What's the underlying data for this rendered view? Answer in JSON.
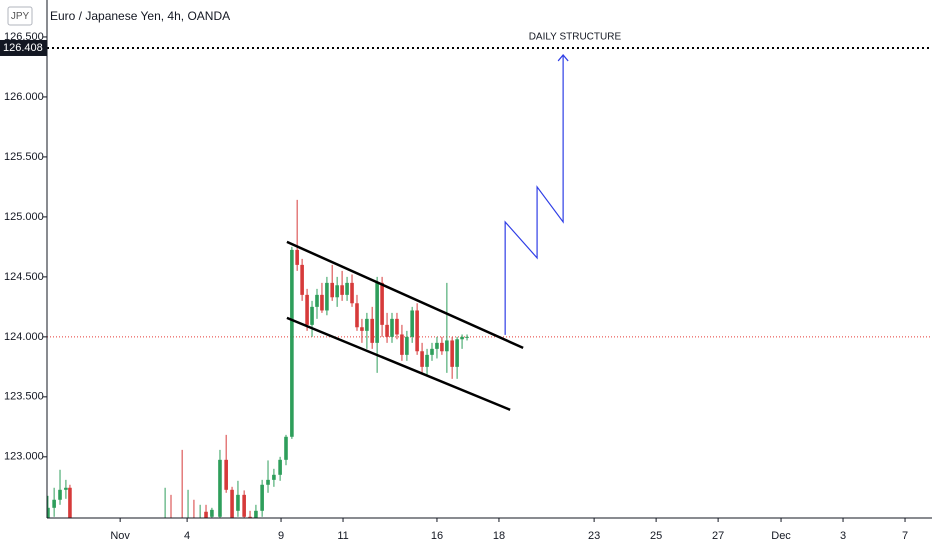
{
  "chart_data": {
    "type": "candlestick",
    "symbol": "JPY",
    "title": "Euro / Japanese Yen, 4h, OANDA",
    "up_color": "#2e9e5b",
    "down_color": "#d63a3a",
    "x": [
      -7.52,
      -7.32,
      -7.13,
      -6.94,
      -6.81,
      -3.74,
      -3.55,
      -3.19,
      -3.0,
      -2.81,
      -2.61,
      -2.42,
      -2.23,
      -1.97,
      -1.77,
      -1.58,
      -1.39,
      -1.19,
      -1.0,
      -0.81,
      -0.61,
      -0.42,
      -0.23,
      -0.03,
      0.16,
      0.35,
      0.52,
      0.68,
      0.84,
      1.0,
      1.16,
      1.32,
      1.48,
      1.65,
      1.81,
      1.97,
      2.13,
      2.29,
      2.45,
      2.61,
      2.77,
      2.94,
      3.1,
      3.26,
      3.42,
      3.58,
      3.74,
      3.9,
      4.06,
      4.23,
      4.39,
      4.55,
      4.71,
      4.87,
      5.03,
      5.19,
      5.35,
      5.52,
      5.68,
      5.84,
      6.0
    ],
    "open": [
      122.45,
      122.575,
      122.642,
      122.725,
      122.742,
      122.45,
      122.48,
      122.47,
      122.46,
      122.47,
      122.46,
      122.542,
      122.5,
      122.5,
      122.975,
      122.725,
      122.55,
      122.683,
      122.5,
      122.48,
      122.55,
      122.767,
      122.808,
      122.85,
      122.975,
      123.167,
      124.725,
      124.6,
      124.35,
      124.1,
      124.25,
      124.35,
      124.22,
      124.45,
      124.33,
      124.43,
      124.35,
      124.45,
      124.28,
      124.08,
      124.05,
      124.15,
      123.95,
      124.45,
      124.1,
      124.0,
      124.15,
      124.02,
      123.85,
      124.0,
      124.22,
      123.88,
      123.75,
      123.85,
      123.9,
      123.95,
      123.88,
      123.97,
      123.75,
      123.98,
      124.0
    ],
    "high": [
      122.675,
      122.742,
      122.892,
      122.808,
      122.767,
      122.742,
      122.683,
      123.058,
      122.725,
      122.642,
      122.6,
      122.6,
      122.575,
      123.058,
      123.183,
      122.75,
      122.8,
      122.72,
      122.55,
      122.6,
      122.808,
      122.97,
      122.9,
      123.0,
      123.183,
      124.75,
      125.142,
      124.65,
      124.4,
      124.3,
      124.4,
      124.45,
      124.5,
      124.6,
      124.5,
      124.55,
      124.5,
      124.52,
      124.35,
      124.15,
      124.2,
      124.25,
      124.5,
      124.5,
      124.2,
      124.2,
      124.2,
      124.1,
      124.05,
      124.25,
      124.28,
      123.95,
      123.9,
      123.95,
      124.0,
      124.0,
      124.45,
      124.0,
      124.0,
      124.02,
      124.02
    ],
    "low": [
      122.4,
      122.5,
      122.6,
      122.65,
      122.4,
      122.4,
      122.43,
      122.44,
      122.42,
      122.42,
      122.43,
      122.45,
      122.45,
      122.45,
      122.7,
      122.4,
      122.5,
      122.45,
      122.4,
      122.43,
      122.5,
      122.7,
      122.75,
      122.8,
      122.93,
      123.15,
      124.55,
      124.3,
      124.05,
      124.0,
      124.15,
      124.2,
      124.18,
      124.3,
      124.25,
      124.3,
      124.3,
      124.25,
      124.05,
      123.95,
      123.9,
      123.9,
      123.7,
      124.0,
      123.95,
      123.95,
      123.98,
      123.8,
      123.8,
      123.95,
      123.85,
      123.7,
      123.68,
      123.8,
      123.82,
      123.85,
      123.7,
      123.65,
      123.65,
      123.9,
      123.97
    ],
    "close": [
      122.575,
      122.642,
      122.725,
      122.742,
      122.45,
      122.48,
      122.47,
      122.46,
      122.47,
      122.46,
      122.48,
      122.49,
      122.558,
      122.975,
      122.725,
      122.45,
      122.683,
      122.5,
      122.48,
      122.55,
      122.767,
      122.808,
      122.85,
      122.975,
      123.167,
      124.725,
      124.6,
      124.35,
      124.1,
      124.25,
      124.35,
      124.22,
      124.45,
      124.33,
      124.43,
      124.35,
      124.45,
      124.28,
      124.08,
      124.05,
      124.15,
      123.95,
      124.45,
      124.1,
      124.0,
      124.15,
      124.02,
      123.85,
      124.0,
      124.22,
      123.88,
      123.75,
      123.85,
      123.9,
      123.95,
      123.88,
      123.97,
      123.75,
      123.98,
      124.0,
      124.0
    ],
    "xlim": [
      -7.55,
      21.0
    ],
    "ylim": [
      122.49,
      126.808
    ],
    "xticks": [
      {
        "value": -5.19,
        "label": "Nov"
      },
      {
        "value": -3.03,
        "label": "4"
      },
      {
        "value": 0,
        "label": "9"
      },
      {
        "value": 2,
        "label": "11"
      },
      {
        "value": 5.03,
        "label": "16"
      },
      {
        "value": 7.03,
        "label": "18"
      },
      {
        "value": 10.1,
        "label": "23"
      },
      {
        "value": 12.1,
        "label": "25"
      },
      {
        "value": 14.1,
        "label": "27"
      },
      {
        "value": 16.13,
        "label": "Dec"
      },
      {
        "value": 18.13,
        "label": "3"
      },
      {
        "value": 20.13,
        "label": "7"
      }
    ],
    "yticks": [
      {
        "value": 123,
        "label": "123.000"
      },
      {
        "value": 123.5,
        "label": "123.500"
      },
      {
        "value": 124,
        "label": "124.000"
      },
      {
        "value": 124.5,
        "label": "124.500"
      },
      {
        "value": 125,
        "label": "125.000"
      },
      {
        "value": 125.5,
        "label": "125.500"
      },
      {
        "value": 126,
        "label": "126.000"
      },
      {
        "value": 126.5,
        "label": "126.500"
      }
    ],
    "levels": [
      {
        "value": 126.408,
        "color": "#000000",
        "text": "DAILY STRUCTURE",
        "text_x": 9.48
      },
      {
        "value": 124.0,
        "color": "#e53935"
      }
    ],
    "trendlines": [
      {
        "color": "#000000",
        "x": [
          0.19,
          7.81
        ],
        "y": [
          124.792,
          123.908
        ]
      },
      {
        "color": "#000000",
        "x": [
          0.19,
          7.39
        ],
        "y": [
          124.158,
          123.392
        ]
      },
      {
        "color": "#2f3ee6",
        "x": [
          7.23,
          7.23,
          8.26,
          8.26,
          9.1,
          9.1
        ],
        "y": [
          124.017,
          124.958,
          124.658,
          125.25,
          124.958,
          126.35
        ]
      }
    ]
  }
}
